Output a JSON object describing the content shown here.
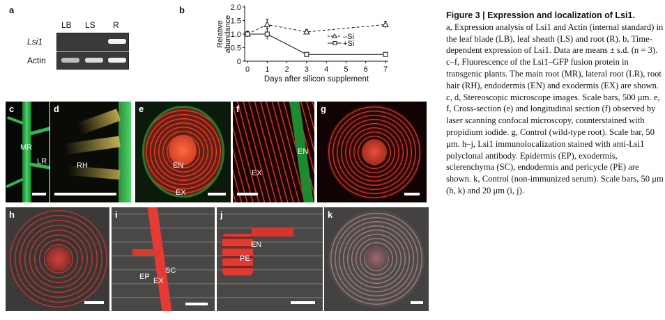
{
  "panel_a": {
    "label": "a",
    "columns": [
      "LB",
      "LS",
      "R"
    ],
    "rows": [
      "Lsi1",
      "Actin"
    ]
  },
  "panel_b": {
    "label": "b"
  },
  "chart_data": {
    "type": "line",
    "x": [
      0,
      1,
      3,
      7
    ],
    "series": [
      {
        "name": "–Si",
        "values": [
          1.0,
          1.35,
          1.08,
          1.35
        ],
        "errors": [
          0.1,
          0.2,
          0.08,
          0.12
        ]
      },
      {
        "name": "+Si",
        "values": [
          1.0,
          1.0,
          0.25,
          0.25
        ],
        "errors": [
          0.1,
          0.2,
          0.02,
          0.02
        ]
      }
    ],
    "xlabel": "Days after silicon supplement",
    "ylabel": "Relative abundance",
    "ylim": [
      0,
      2.0
    ],
    "xlim": [
      0,
      7
    ],
    "xticks": [
      0,
      1,
      2,
      3,
      4,
      5,
      6,
      7
    ],
    "yticks": [
      "0",
      "0.5",
      "1.0",
      "1.5",
      "2.0"
    ],
    "legend_position": "right",
    "grid": false
  },
  "images": {
    "c": {
      "label": "c",
      "texts": [
        "MR",
        "LR"
      ]
    },
    "d": {
      "label": "d",
      "texts": [
        "RH"
      ]
    },
    "e": {
      "label": "e",
      "texts": [
        "EN",
        "EX"
      ]
    },
    "f": {
      "label": "f",
      "texts": [
        "EN",
        "EX"
      ]
    },
    "g": {
      "label": "g"
    },
    "h": {
      "label": "h"
    },
    "i": {
      "label": "i",
      "texts": [
        "EP",
        "EX",
        "SC"
      ]
    },
    "j": {
      "label": "j",
      "texts": [
        "EN",
        "PE"
      ]
    },
    "k": {
      "label": "k"
    }
  },
  "caption": {
    "title": "Figure 3 | Expression and localization of Lsi1.",
    "body": "a, Expression analysis of Lsi1 and Actin (internal standard) in the leaf blade (LB), leaf sheath (LS) and root (R). b, Time-dependent expression of Lsi1. Data are means ± s.d. (n = 3). c–f, Fluorescence of the Lsi1–GFP fusion protein in transgenic plants. The main root (MR), lateral root (LR), root hair (RH), endodermis (EN) and exodermis (EX) are shown. c, d, Stereoscopic microscope images. Scale bars, 500 μm. e, f, Cross-section (e) and longitudinal section (f) observed by laser scanning confocal microscopy, counterstained with propidium iodide. g, Control (wild-type root). Scale bar, 50 μm. h–j, Lsi1 immunolocalization stained with anti-Lsi1 polyclonal antibody. Epidermis (EP), exodermis, sclerenchyma (SC), endodermis and pericycle (PE) are shown. k, Control (non-immunized serum). Scale bars, 50 μm (h, k) and 20 μm (i, j)."
  },
  "colors": {
    "gfp_green": "#2fb84a",
    "pi_red": "#e8342a",
    "gel_background": "#3a3a3a",
    "band_white": "#f2f2f2"
  }
}
